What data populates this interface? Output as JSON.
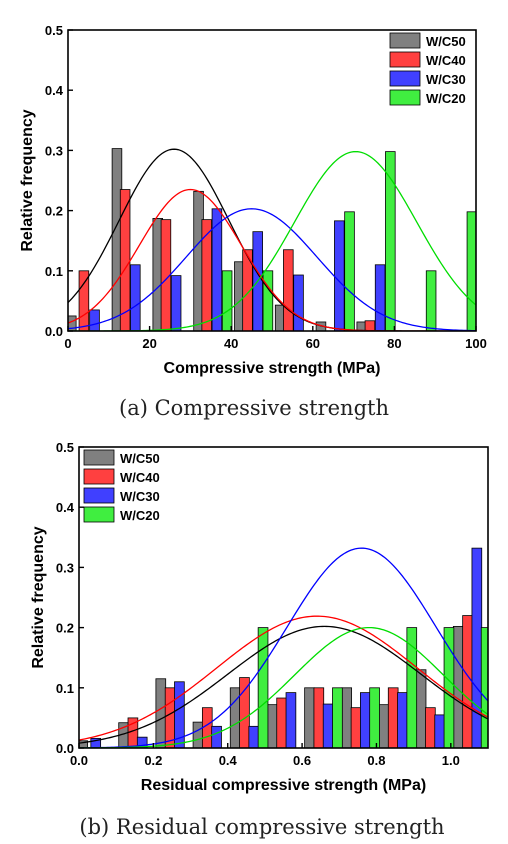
{
  "chart_data": [
    {
      "type": "bar",
      "caption": "(a) Compressive strength",
      "xlabel": "Compressive strength (MPa)",
      "ylabel": "Relative frequency",
      "xlim": [
        0,
        100
      ],
      "ylim": [
        0,
        0.5
      ],
      "xticks": [
        0,
        20,
        40,
        60,
        80,
        100
      ],
      "yticks": [
        0.0,
        0.1,
        0.2,
        0.3,
        0.4,
        0.5
      ],
      "legend_position": "top-right",
      "grid": false,
      "series": [
        {
          "name": "W/C50",
          "color": "#808080",
          "bars": [
            [
              0.8,
              0.025
            ],
            [
              12.0,
              0.303
            ],
            [
              22.0,
              0.187
            ],
            [
              32.0,
              0.232
            ],
            [
              42.0,
              0.115
            ],
            [
              52.0,
              0.043
            ],
            [
              62.0,
              0.015
            ],
            [
              72.0,
              0.015
            ]
          ],
          "curve": {
            "mean": 26,
            "sd": 13.5,
            "peak": 0.302
          }
        },
        {
          "name": "W/C40",
          "color": "#ff4040",
          "bars": [
            [
              3.9,
              0.1
            ],
            [
              14.0,
              0.235
            ],
            [
              24.0,
              0.185
            ],
            [
              34.0,
              0.185
            ],
            [
              44.0,
              0.135
            ],
            [
              54.0,
              0.135
            ],
            [
              74.0,
              0.017
            ]
          ],
          "curve": {
            "mean": 30,
            "sd": 12.5,
            "peak": 0.235
          }
        },
        {
          "name": "W/C30",
          "color": "#4040ff",
          "bars": [
            [
              6.5,
              0.035
            ],
            [
              16.5,
              0.11
            ],
            [
              26.5,
              0.092
            ],
            [
              36.5,
              0.203
            ],
            [
              46.5,
              0.165
            ],
            [
              56.5,
              0.093
            ],
            [
              66.5,
              0.183
            ],
            [
              76.5,
              0.11
            ]
          ],
          "curve": {
            "mean": 45,
            "sd": 16,
            "peak": 0.203
          }
        },
        {
          "name": "W/C20",
          "color": "#40ee40",
          "bars": [
            [
              39.0,
              0.1
            ],
            [
              49.0,
              0.1
            ],
            [
              69.0,
              0.198
            ],
            [
              79.0,
              0.298
            ],
            [
              89.0,
              0.1
            ],
            [
              99.0,
              0.198
            ]
          ],
          "curve": {
            "mean": 70.5,
            "sd": 15,
            "peak": 0.298
          }
        }
      ]
    },
    {
      "type": "bar",
      "caption": "(b) Residual compressive strength",
      "xlabel": "Residual compressive strength (MPa)",
      "ylabel": "Relative frequency",
      "xlim": [
        0,
        1.1
      ],
      "ylim": [
        0,
        0.5
      ],
      "xticks": [
        0.0,
        0.2,
        0.4,
        0.6,
        0.8,
        1.0
      ],
      "yticks": [
        0.0,
        0.1,
        0.2,
        0.3,
        0.4,
        0.5
      ],
      "legend_position": "top-left",
      "grid": false,
      "series": [
        {
          "name": "W/C50",
          "color": "#808080",
          "bars": [
            [
              0.01,
              0.012
            ],
            [
              0.12,
              0.042
            ],
            [
              0.22,
              0.115
            ],
            [
              0.32,
              0.043
            ],
            [
              0.42,
              0.1
            ],
            [
              0.52,
              0.072
            ],
            [
              0.62,
              0.1
            ],
            [
              0.72,
              0.1
            ],
            [
              0.82,
              0.072
            ],
            [
              0.92,
              0.13
            ],
            [
              1.02,
              0.202
            ]
          ],
          "curve": {
            "mean": 0.66,
            "sd": 0.26,
            "peak": 0.202
          }
        },
        {
          "name": "W/C40",
          "color": "#ff4040",
          "bars": [
            [
              0.145,
              0.05
            ],
            [
              0.245,
              0.1
            ],
            [
              0.345,
              0.067
            ],
            [
              0.445,
              0.117
            ],
            [
              0.545,
              0.083
            ],
            [
              0.645,
              0.1
            ],
            [
              0.745,
              0.067
            ],
            [
              0.845,
              0.1
            ],
            [
              0.945,
              0.067
            ],
            [
              1.045,
              0.22
            ]
          ],
          "curve": {
            "mean": 0.64,
            "sd": 0.27,
            "peak": 0.219
          }
        },
        {
          "name": "W/C30",
          "color": "#4040ff",
          "bars": [
            [
              0.045,
              0.016
            ],
            [
              0.17,
              0.018
            ],
            [
              0.27,
              0.11
            ],
            [
              0.37,
              0.036
            ],
            [
              0.47,
              0.036
            ],
            [
              0.57,
              0.092
            ],
            [
              0.67,
              0.073
            ],
            [
              0.77,
              0.092
            ],
            [
              0.87,
              0.092
            ],
            [
              0.97,
              0.055
            ],
            [
              1.07,
              0.332
            ]
          ],
          "curve": {
            "mean": 0.76,
            "sd": 0.2,
            "peak": 0.332
          }
        },
        {
          "name": "W/C20",
          "color": "#40ee40",
          "bars": [
            [
              0.495,
              0.2
            ],
            [
              0.695,
              0.1
            ],
            [
              0.795,
              0.1
            ],
            [
              0.895,
              0.2
            ],
            [
              0.995,
              0.2
            ],
            [
              1.095,
              0.2
            ]
          ],
          "curve": {
            "mean": 0.78,
            "sd": 0.2,
            "peak": 0.2
          }
        }
      ]
    }
  ]
}
